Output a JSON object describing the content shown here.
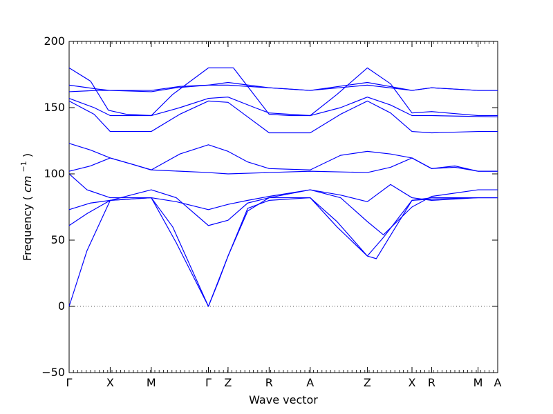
{
  "chart_data": {
    "type": "line",
    "title": "",
    "xlabel": "Wave vector",
    "ylabel": "Frequency",
    "ylabel_unit": "cm",
    "ylabel_unit_exp": "−1",
    "ylim": [
      -50,
      200
    ],
    "yticks": [
      -50,
      0,
      50,
      100,
      150,
      200
    ],
    "ytick_labels": [
      "−50",
      "0",
      "50",
      "100",
      "150",
      "200"
    ],
    "xlim": [
      0,
      12
    ],
    "xticks": [
      {
        "x": 0,
        "label": "Γ"
      },
      {
        "x": 1.15,
        "label": "X"
      },
      {
        "x": 2.3,
        "label": "M"
      },
      {
        "x": 3.9,
        "label": "Γ"
      },
      {
        "x": 4.45,
        "label": "Z"
      },
      {
        "x": 5.6,
        "label": "R"
      },
      {
        "x": 6.75,
        "label": "A"
      },
      {
        "x": 8.35,
        "label": "Z"
      },
      {
        "x": 9.6,
        "label": "X"
      },
      {
        "x": 10.15,
        "label": "R"
      },
      {
        "x": 11.45,
        "label": "M"
      },
      {
        "x": 12,
        "label": "A"
      }
    ],
    "zero_line": true,
    "line_color": "#0000ff",
    "series": [
      {
        "points": [
          [
            0,
            180
          ],
          [
            0.6,
            170
          ],
          [
            1.1,
            148
          ],
          [
            1.6,
            145
          ],
          [
            2.3,
            144
          ],
          [
            2.9,
            160
          ],
          [
            3.9,
            180
          ],
          [
            4.6,
            180
          ],
          [
            5.6,
            145
          ],
          [
            6.2,
            144
          ],
          [
            6.75,
            144
          ],
          [
            7.5,
            160
          ],
          [
            8.35,
            180
          ],
          [
            9.0,
            168
          ],
          [
            9.6,
            146
          ],
          [
            10.15,
            147
          ],
          [
            11.45,
            144
          ],
          [
            12,
            144
          ]
        ]
      },
      {
        "points": [
          [
            0,
            167
          ],
          [
            0.8,
            164
          ],
          [
            1.15,
            163
          ],
          [
            2.3,
            163
          ],
          [
            3.1,
            166
          ],
          [
            3.9,
            167
          ],
          [
            4.45,
            169
          ],
          [
            5.6,
            165
          ],
          [
            6.75,
            163
          ],
          [
            8.35,
            169
          ],
          [
            9.6,
            163
          ],
          [
            10.15,
            165
          ],
          [
            11.45,
            163
          ],
          [
            12,
            163
          ]
        ]
      },
      {
        "points": [
          [
            0,
            162
          ],
          [
            0.8,
            163
          ],
          [
            1.15,
            163
          ],
          [
            2.3,
            162
          ],
          [
            3.0,
            165
          ],
          [
            3.9,
            167
          ],
          [
            4.45,
            167
          ],
          [
            5.6,
            165
          ],
          [
            6.75,
            163
          ],
          [
            8.35,
            167
          ],
          [
            9.6,
            163
          ],
          [
            10.15,
            165
          ],
          [
            11.45,
            163
          ],
          [
            12,
            163
          ]
        ]
      },
      {
        "points": [
          [
            0,
            157
          ],
          [
            0.7,
            150
          ],
          [
            1.15,
            144
          ],
          [
            2.3,
            144
          ],
          [
            3.1,
            150
          ],
          [
            3.9,
            157
          ],
          [
            4.45,
            158
          ],
          [
            5.2,
            150
          ],
          [
            5.6,
            146
          ],
          [
            6.75,
            144
          ],
          [
            7.6,
            150
          ],
          [
            8.35,
            158
          ],
          [
            9.0,
            152
          ],
          [
            9.6,
            144
          ],
          [
            10.15,
            144
          ],
          [
            12,
            143
          ]
        ]
      },
      {
        "points": [
          [
            0,
            155
          ],
          [
            0.7,
            145
          ],
          [
            1.15,
            132
          ],
          [
            2.3,
            132
          ],
          [
            3.1,
            145
          ],
          [
            3.9,
            155
          ],
          [
            4.45,
            154
          ],
          [
            5.0,
            143
          ],
          [
            5.6,
            131
          ],
          [
            6.75,
            131
          ],
          [
            7.6,
            145
          ],
          [
            8.35,
            155
          ],
          [
            9.0,
            146
          ],
          [
            9.6,
            132
          ],
          [
            10.15,
            131
          ],
          [
            11.45,
            132
          ],
          [
            12,
            132
          ]
        ]
      },
      {
        "points": [
          [
            0,
            123
          ],
          [
            0.6,
            118
          ],
          [
            1.15,
            112
          ],
          [
            1.8,
            107
          ],
          [
            2.3,
            103
          ],
          [
            3.1,
            115
          ],
          [
            3.9,
            122
          ],
          [
            4.45,
            117
          ],
          [
            5.0,
            109
          ],
          [
            5.6,
            104
          ],
          [
            6.75,
            103
          ],
          [
            7.6,
            114
          ],
          [
            8.35,
            117
          ],
          [
            9.0,
            115
          ],
          [
            9.6,
            112
          ],
          [
            10.15,
            104
          ],
          [
            10.8,
            106
          ],
          [
            11.45,
            102
          ],
          [
            12,
            102
          ]
        ]
      },
      {
        "points": [
          [
            0,
            102
          ],
          [
            0.6,
            106
          ],
          [
            1.15,
            112
          ],
          [
            1.8,
            107
          ],
          [
            2.3,
            103
          ],
          [
            3.1,
            102
          ],
          [
            3.9,
            101
          ],
          [
            4.45,
            100
          ],
          [
            5.6,
            101
          ],
          [
            6.75,
            102
          ],
          [
            8.35,
            101
          ],
          [
            9.0,
            105
          ],
          [
            9.6,
            112
          ],
          [
            10.15,
            104
          ],
          [
            10.8,
            105
          ],
          [
            11.45,
            102
          ],
          [
            12,
            102
          ]
        ]
      },
      {
        "points": [
          [
            0,
            100
          ],
          [
            0.5,
            88
          ],
          [
            1.15,
            82
          ],
          [
            2.3,
            82
          ],
          [
            2.9,
            60
          ],
          [
            3.9,
            0
          ],
          [
            4.2,
            20
          ],
          [
            4.45,
            38
          ],
          [
            5.0,
            72
          ],
          [
            5.6,
            82
          ],
          [
            6.75,
            82
          ],
          [
            7.5,
            64
          ],
          [
            8.35,
            38
          ],
          [
            8.8,
            52
          ],
          [
            9.6,
            80
          ],
          [
            10.15,
            82
          ],
          [
            11.45,
            82
          ],
          [
            12,
            82
          ]
        ]
      },
      {
        "points": [
          [
            0,
            73
          ],
          [
            0.6,
            78
          ],
          [
            1.15,
            80
          ],
          [
            2.3,
            82
          ],
          [
            3.0,
            79
          ],
          [
            3.9,
            73
          ],
          [
            4.45,
            77
          ],
          [
            5.0,
            80
          ],
          [
            5.6,
            83
          ],
          [
            6.75,
            88
          ],
          [
            7.6,
            84
          ],
          [
            8.35,
            79
          ],
          [
            9.0,
            92
          ],
          [
            9.6,
            82
          ],
          [
            10.15,
            80
          ],
          [
            11.45,
            82
          ],
          [
            12,
            82
          ]
        ]
      },
      {
        "points": [
          [
            0,
            61
          ],
          [
            0.5,
            70
          ],
          [
            1.15,
            80
          ],
          [
            2.3,
            88
          ],
          [
            3.0,
            82
          ],
          [
            3.9,
            61
          ],
          [
            4.45,
            65
          ],
          [
            5.0,
            78
          ],
          [
            5.6,
            82
          ],
          [
            6.75,
            88
          ],
          [
            7.6,
            82
          ],
          [
            8.35,
            64
          ],
          [
            8.8,
            54
          ],
          [
            9.6,
            75
          ],
          [
            10.15,
            83
          ],
          [
            11.45,
            88
          ],
          [
            12,
            88
          ]
        ]
      },
      {
        "points": [
          [
            0,
            0
          ],
          [
            0.5,
            42
          ],
          [
            1.15,
            80
          ],
          [
            2.3,
            82
          ],
          [
            3.0,
            48
          ],
          [
            3.9,
            0
          ],
          [
            4.45,
            38
          ],
          [
            5.0,
            74
          ],
          [
            5.6,
            80
          ],
          [
            6.75,
            82
          ],
          [
            7.5,
            60
          ],
          [
            8.35,
            38
          ],
          [
            8.6,
            36
          ],
          [
            9.6,
            80
          ],
          [
            10.15,
            81
          ],
          [
            11.45,
            82
          ],
          [
            12,
            82
          ]
        ]
      }
    ]
  }
}
